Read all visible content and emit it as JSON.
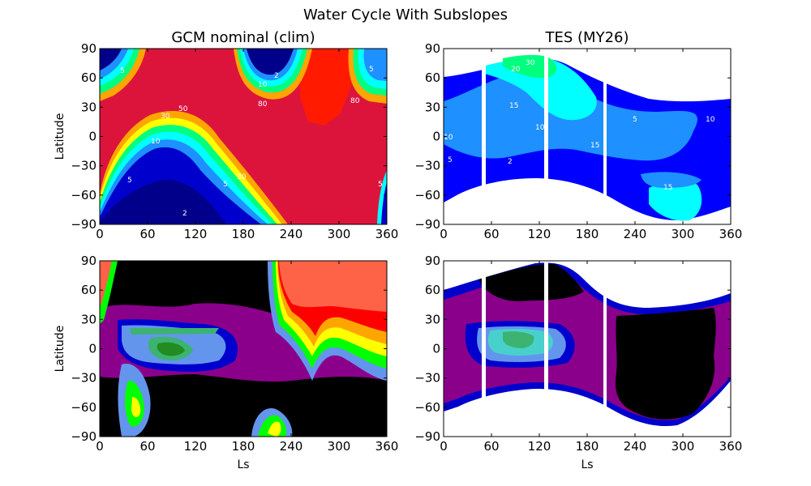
{
  "title": "Water Cycle With Subslopes",
  "chart_data": [
    {
      "type": "heatmap",
      "panel": "top-left",
      "title": "GCM nominal (clim)",
      "xlabel": "",
      "ylabel": "Latitude",
      "xlim": [
        0,
        360
      ],
      "ylim": [
        -90,
        90
      ],
      "xticks": [
        0,
        60,
        120,
        180,
        240,
        300,
        360
      ],
      "yticks": [
        -90,
        -60,
        -30,
        0,
        30,
        60,
        90
      ],
      "contour_levels": [
        2,
        5,
        10,
        15,
        20,
        30,
        50,
        80
      ],
      "contour_labels": [
        "5",
        "10",
        "2",
        "5",
        "80",
        "80",
        "50",
        "30",
        "10",
        "5",
        "2",
        "5",
        "30",
        "20",
        "15",
        "5"
      ],
      "colors": [
        "#00008b",
        "#0000cd",
        "#1e90ff",
        "#00ffff",
        "#00ff7f",
        "#adff2f",
        "#ffff00",
        "#ffa500",
        "#ff0000",
        "#dc143c"
      ]
    },
    {
      "type": "heatmap",
      "panel": "top-right",
      "title": "TES (MY26)",
      "xlabel": "",
      "ylabel": "",
      "xlim": [
        0,
        360
      ],
      "ylim": [
        -90,
        90
      ],
      "xticks": [
        0,
        60,
        120,
        180,
        240,
        300,
        360
      ],
      "yticks": [
        -90,
        -60,
        -30,
        0,
        30,
        60,
        90
      ],
      "contour_labels": [
        "20",
        "30",
        "15",
        "10",
        "5",
        "2",
        "10",
        "15",
        "20",
        "15",
        "5",
        "5",
        "2",
        "10",
        "5",
        "15",
        "10"
      ],
      "colors": [
        "#0000cd",
        "#0000ff",
        "#1e90ff",
        "#00ffff",
        "#00ff7f"
      ]
    },
    {
      "type": "heatmap",
      "panel": "bottom-left",
      "title": "",
      "xlabel": "Ls",
      "ylabel": "Latitude",
      "xlim": [
        0,
        360
      ],
      "ylim": [
        -90,
        90
      ],
      "xticks": [
        0,
        60,
        120,
        180,
        240,
        300,
        360
      ],
      "yticks": [
        -90,
        -60,
        -30,
        0,
        30,
        60,
        90
      ],
      "colors": [
        "#000000",
        "#8b008b",
        "#0000cd",
        "#6495ed",
        "#3cb371",
        "#00ff00",
        "#ffff00",
        "#ffa500",
        "#ff0000",
        "#ff6347"
      ]
    },
    {
      "type": "heatmap",
      "panel": "bottom-right",
      "title": "",
      "xlabel": "Ls",
      "ylabel": "",
      "xlim": [
        0,
        360
      ],
      "ylim": [
        -90,
        90
      ],
      "xticks": [
        0,
        60,
        120,
        180,
        240,
        300,
        360
      ],
      "yticks": [
        -90,
        -60,
        -30,
        0,
        30,
        60,
        90
      ],
      "colors": [
        "#000000",
        "#8b008b",
        "#0000cd",
        "#6495ed",
        "#48d1cc",
        "#3cb371"
      ]
    }
  ]
}
